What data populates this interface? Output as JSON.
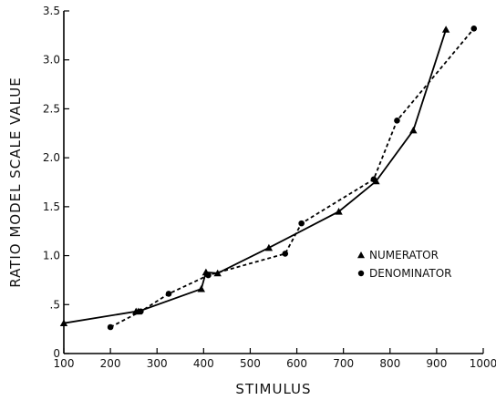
{
  "chart_data": {
    "type": "line",
    "xlabel": "STIMULUS",
    "ylabel": "RATIO MODEL SCALE VALUE",
    "xlim": [
      100,
      1000
    ],
    "ylim": [
      0,
      3.5
    ],
    "x_ticks": [
      100,
      200,
      300,
      400,
      500,
      600,
      700,
      800,
      900,
      1000
    ],
    "y_ticks": [
      0,
      0.5,
      1.0,
      1.5,
      2.0,
      2.5,
      3.0,
      3.5
    ],
    "x_tick_labels": [
      "100",
      "200",
      "300",
      "400",
      "500",
      "600",
      "700",
      "800",
      "900",
      "1000"
    ],
    "y_tick_labels": [
      "0",
      ".5",
      "1.0",
      "1.5",
      "2.0",
      "2.5",
      "3.0",
      "3.5"
    ],
    "legend_position": "right",
    "series": [
      {
        "name": "NUMERATOR",
        "marker": "triangle",
        "line": "solid",
        "points": [
          [
            100,
            0.31
          ],
          [
            255,
            0.43
          ],
          [
            260,
            0.43
          ],
          [
            395,
            0.66
          ],
          [
            405,
            0.83
          ],
          [
            430,
            0.82
          ],
          [
            540,
            1.08
          ],
          [
            690,
            1.45
          ],
          [
            770,
            1.76
          ],
          [
            850,
            2.28
          ],
          [
            920,
            3.31
          ]
        ]
      },
      {
        "name": "DENOMINATOR",
        "marker": "circle",
        "line": "dashed",
        "points": [
          [
            200,
            0.27
          ],
          [
            265,
            0.43
          ],
          [
            325,
            0.61
          ],
          [
            410,
            0.8
          ],
          [
            575,
            1.02
          ],
          [
            610,
            1.33
          ],
          [
            765,
            1.78
          ],
          [
            815,
            2.38
          ],
          [
            980,
            3.32
          ]
        ]
      }
    ]
  }
}
